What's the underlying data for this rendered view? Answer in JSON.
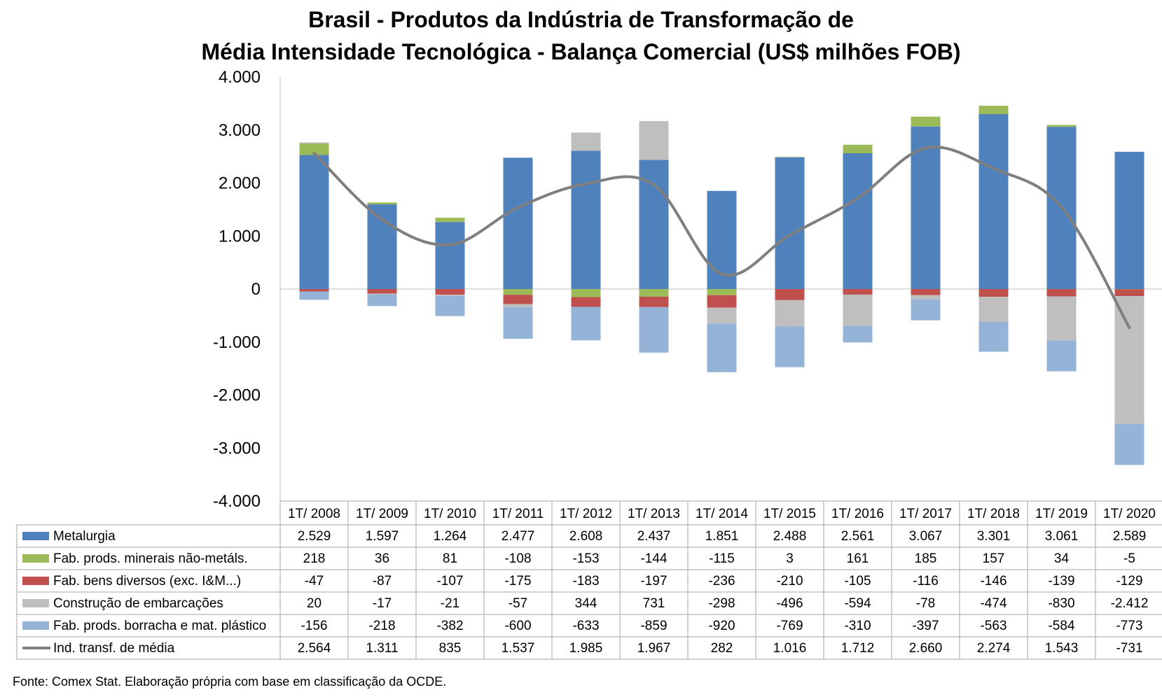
{
  "chart_data": {
    "type": "bar",
    "stacked": true,
    "title_line1": "Brasil - Produtos da Indústria de Transformação de",
    "title_line2": "Média Intensidade Tecnológica - Balança Comercial (US$ milhões FOB)",
    "ylim": [
      -4000,
      4000
    ],
    "yticks": [
      4000,
      3000,
      2000,
      1000,
      0,
      -1000,
      -2000,
      -3000,
      -4000
    ],
    "ytick_labels": [
      "4.000",
      "3.000",
      "2.000",
      "1.000",
      "0",
      "-1.000",
      "-2.000",
      "-3.000",
      "-4.000"
    ],
    "categories": [
      "1T/ 2008",
      "1T/ 2009",
      "1T/ 2010",
      "1T/ 2011",
      "1T/ 2012",
      "1T/ 2013",
      "1T/ 2014",
      "1T/ 2015",
      "1T/ 2016",
      "1T/ 2017",
      "1T/ 2018",
      "1T/ 2019",
      "1T/ 2020"
    ],
    "series": [
      {
        "name": "Metalurgia",
        "kind": "bar",
        "color": "#4f81bd",
        "values": [
          2529,
          1597,
          1264,
          2477,
          2608,
          2437,
          1851,
          2488,
          2561,
          3067,
          3301,
          3061,
          2589
        ],
        "labels": [
          "2.529",
          "1.597",
          "1.264",
          "2.477",
          "2.608",
          "2.437",
          "1.851",
          "2.488",
          "2.561",
          "3.067",
          "3.301",
          "3.061",
          "2.589"
        ]
      },
      {
        "name": "Fab. prods. minerais não-metáls.",
        "kind": "bar",
        "color": "#9bbb59",
        "values": [
          218,
          36,
          81,
          -108,
          -153,
          -144,
          -115,
          3,
          161,
          185,
          157,
          34,
          -5
        ],
        "labels": [
          "218",
          "36",
          "81",
          "-108",
          "-153",
          "-144",
          "-115",
          "3",
          "161",
          "185",
          "157",
          "34",
          "-5"
        ]
      },
      {
        "name": "Fab. bens diversos (exc. I&M...)",
        "kind": "bar",
        "color": "#c0504d",
        "values": [
          -47,
          -87,
          -107,
          -175,
          -183,
          -197,
          -236,
          -210,
          -105,
          -116,
          -146,
          -139,
          -129
        ],
        "labels": [
          "-47",
          "-87",
          "-107",
          "-175",
          "-183",
          "-197",
          "-236",
          "-210",
          "-105",
          "-116",
          "-146",
          "-139",
          "-129"
        ]
      },
      {
        "name": "Construção de embarcações",
        "kind": "bar",
        "color": "#bfbfbf",
        "values": [
          20,
          -17,
          -21,
          -57,
          344,
          731,
          -298,
          -496,
          -594,
          -78,
          -474,
          -830,
          -2412
        ],
        "labels": [
          "20",
          "-17",
          "-21",
          "-57",
          "344",
          "731",
          "-298",
          "-496",
          "-594",
          "-78",
          "-474",
          "-830",
          "-2.412"
        ]
      },
      {
        "name": "Fab. prods. borracha e mat. plástico",
        "kind": "bar",
        "color": "#95b3d7",
        "values": [
          -156,
          -218,
          -382,
          -600,
          -633,
          -859,
          -920,
          -769,
          -310,
          -397,
          -563,
          -584,
          -773
        ],
        "labels": [
          "-156",
          "-218",
          "-382",
          "-600",
          "-633",
          "-859",
          "-920",
          "-769",
          "-310",
          "-397",
          "-563",
          "-584",
          "-773"
        ]
      },
      {
        "name": "Ind. transf. de média",
        "kind": "line",
        "color": "#7f7f7f",
        "values": [
          2564,
          1311,
          835,
          1537,
          1985,
          1967,
          282,
          1016,
          1712,
          2660,
          2274,
          1543,
          -731
        ],
        "labels": [
          "2.564",
          "1.311",
          "835",
          "1.537",
          "1.985",
          "1.967",
          "282",
          "1.016",
          "1.712",
          "2.660",
          "2.274",
          "1.543",
          "-731"
        ]
      }
    ],
    "source": "Fonte: Comex Stat. Elaboração própria com base em classificação da OCDE."
  }
}
